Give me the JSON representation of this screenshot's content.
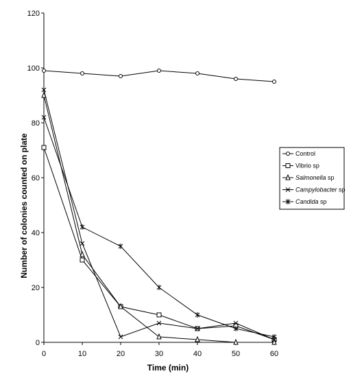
{
  "chart_data": {
    "type": "line",
    "xlabel": "Time (min)",
    "ylabel": "Number of colonies counted on plate",
    "x": [
      0,
      10,
      20,
      30,
      40,
      50,
      60
    ],
    "xlim": [
      0,
      60
    ],
    "ylim": [
      0,
      120
    ],
    "x_ticks": [
      "0",
      "10",
      "20",
      "30",
      "40",
      "50",
      "60"
    ],
    "y_ticks": [
      "0",
      "20",
      "40",
      "60",
      "80",
      "100",
      "120"
    ],
    "grid": false,
    "legend_position": "right",
    "series": [
      {
        "name": "Control",
        "marker": "circle",
        "italic": false,
        "values": [
          99,
          98,
          97,
          99,
          98,
          96,
          95
        ]
      },
      {
        "name": "Vibrio sp",
        "marker": "square",
        "italic": false,
        "values": [
          71,
          30,
          13,
          10,
          5,
          6,
          1
        ]
      },
      {
        "name": "Salmonella sp",
        "marker": "triangle",
        "italic": true,
        "values": [
          90,
          32,
          13,
          2,
          1,
          0,
          0
        ]
      },
      {
        "name": "Campylobacter sp",
        "marker": "x",
        "italic": true,
        "values": [
          92,
          36,
          2,
          7,
          5,
          7,
          1
        ]
      },
      {
        "name": "Candida sp",
        "marker": "star",
        "italic": true,
        "values": [
          82,
          42,
          35,
          20,
          10,
          5,
          2
        ]
      }
    ]
  }
}
